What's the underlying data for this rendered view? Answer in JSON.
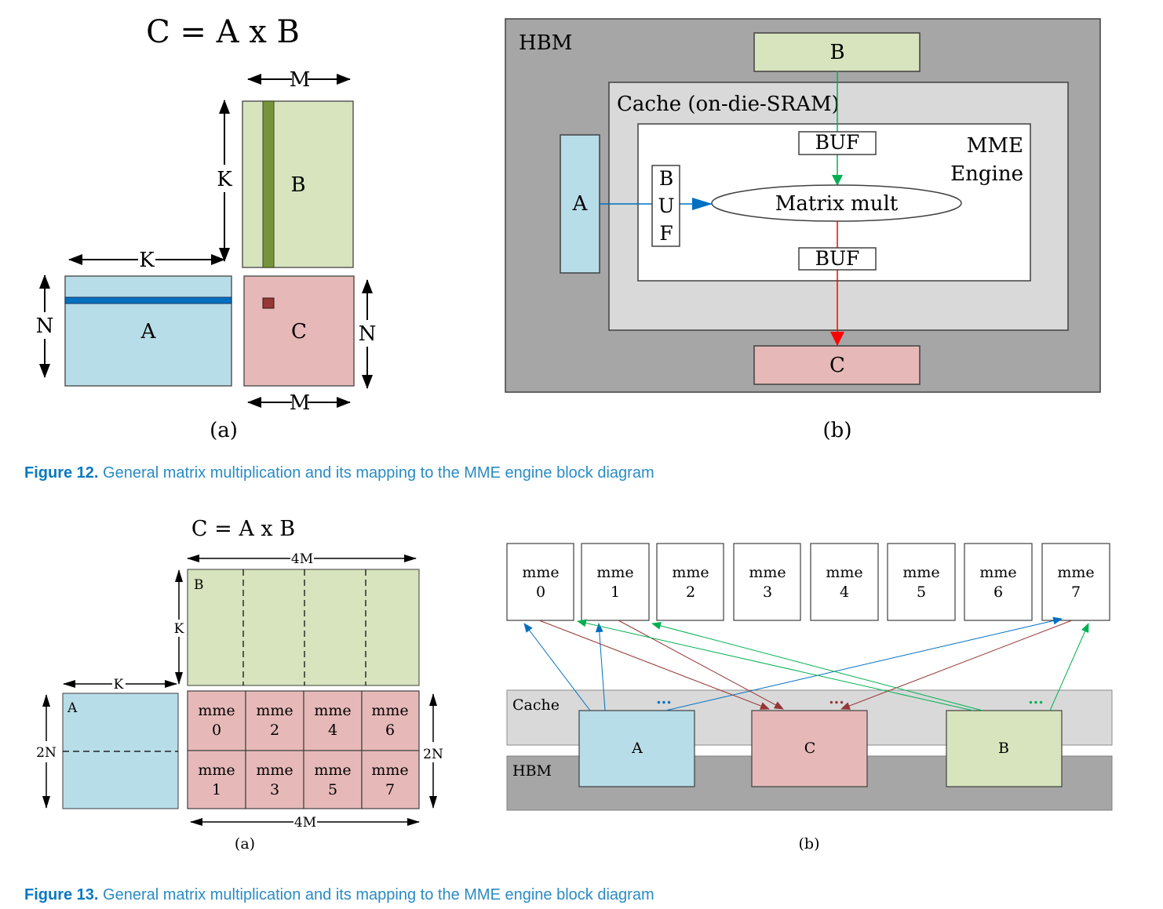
{
  "figure12": {
    "panel_a": {
      "equation": "C = A x B",
      "label_M_top": "M",
      "label_K_vertical": "K",
      "label_K_horizontal": "K",
      "label_N_left": "N",
      "label_N_right": "N",
      "label_M_bottom": "M",
      "matrix_A": "A",
      "matrix_B": "B",
      "matrix_C": "C",
      "sublabel": "(a)"
    },
    "panel_b": {
      "hbm": "HBM",
      "cache": "Cache (on-die-SRAM)",
      "engine_line1": "MME",
      "engine_line2": "Engine",
      "buf_top": "BUF",
      "buf_bottom": "BUF",
      "buf_left": [
        "B",
        "U",
        "F"
      ],
      "matrix_mult": "Matrix mult",
      "block_A": "A",
      "block_B": "B",
      "block_C": "C",
      "sublabel": "(b)"
    },
    "caption_lead": "Figure 12.",
    "caption_text": " General matrix multiplication and its mapping to the MME engine block diagram"
  },
  "figure13": {
    "panel_a": {
      "equation": "C = A x B",
      "label_4M_top": "4M",
      "label_K_vertical": "K",
      "label_K_horizontal": "K",
      "label_2N_left": "2N",
      "label_2N_right": "2N",
      "label_4M_bottom": "4M",
      "matrix_A": "A",
      "matrix_B": "B",
      "cells": [
        [
          "mme",
          "0"
        ],
        [
          "mme",
          "2"
        ],
        [
          "mme",
          "4"
        ],
        [
          "mme",
          "6"
        ],
        [
          "mme",
          "1"
        ],
        [
          "mme",
          "3"
        ],
        [
          "mme",
          "5"
        ],
        [
          "mme",
          "7"
        ]
      ],
      "sublabel": "(a)"
    },
    "panel_b": {
      "engines": [
        [
          "mme",
          "0"
        ],
        [
          "mme",
          "1"
        ],
        [
          "mme",
          "2"
        ],
        [
          "mme",
          "3"
        ],
        [
          "mme",
          "4"
        ],
        [
          "mme",
          "5"
        ],
        [
          "mme",
          "6"
        ],
        [
          "mme",
          "7"
        ]
      ],
      "cache": "Cache",
      "hbm": "HBM",
      "block_A": "A",
      "block_C": "C",
      "block_B": "B",
      "dots": "...",
      "sublabel": "(b)"
    },
    "caption_lead": "Figure 13.",
    "caption_text": " General matrix multiplication and its mapping to the MME engine block diagram"
  },
  "colors": {
    "matrix_A": "#b7dde8",
    "matrix_B": "#d7e4bd",
    "matrix_C": "#e6b9b8",
    "hbm_gray": "#a6a6a6",
    "cache_gray": "#d9d9d9",
    "arrow_blue": "#0070c0",
    "arrow_green": "#00b050",
    "arrow_red": "#ff0000",
    "arrow_brown": "#953735",
    "caption_blue": "#0a79c0"
  }
}
